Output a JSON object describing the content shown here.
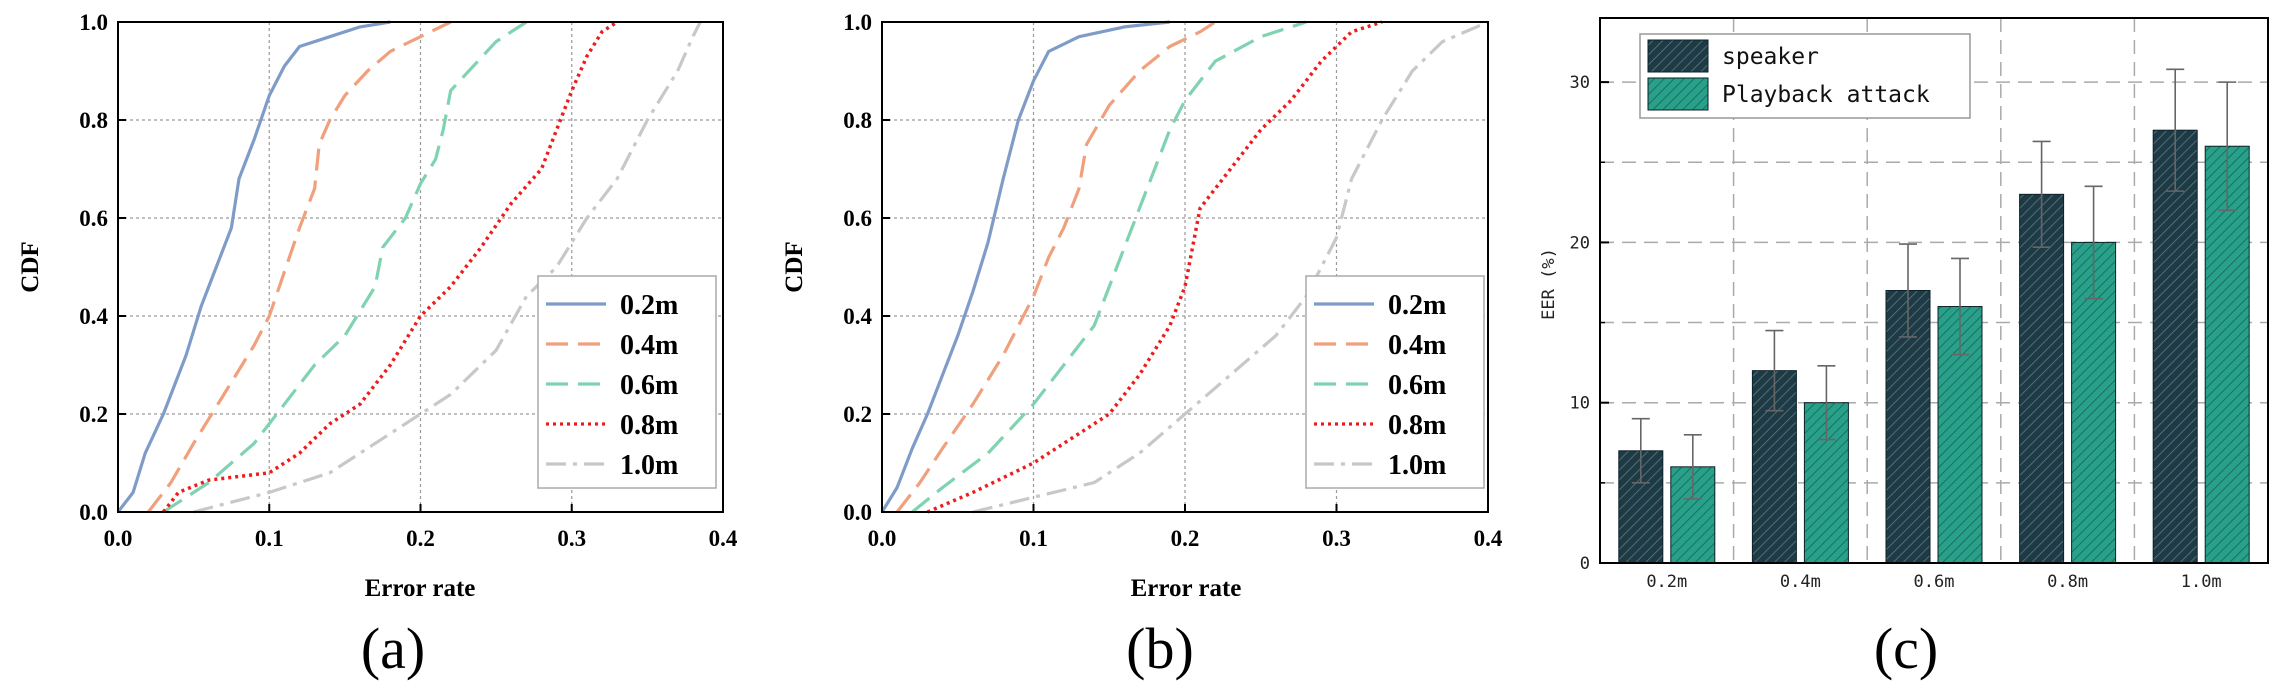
{
  "chart_data": [
    {
      "type": "line",
      "id": "a",
      "panel_label": "(a)",
      "xlabel": "Error rate",
      "ylabel": "CDF",
      "xlim": [
        0,
        0.4
      ],
      "ylim": [
        0,
        1.0
      ],
      "xticks": [
        "0.0",
        "0.1",
        "0.2",
        "0.3",
        "0.4"
      ],
      "yticks": [
        "0.0",
        "0.2",
        "0.4",
        "0.6",
        "0.8",
        "1.0"
      ],
      "grid": true,
      "legend_position": "lower-right",
      "series": [
        {
          "name": "0.2m",
          "style": "solid",
          "color": "#7f9cc8",
          "points": [
            [
              0,
              0
            ],
            [
              0.01,
              0.04
            ],
            [
              0.018,
              0.12
            ],
            [
              0.03,
              0.2
            ],
            [
              0.045,
              0.32
            ],
            [
              0.055,
              0.42
            ],
            [
              0.065,
              0.5
            ],
            [
              0.075,
              0.58
            ],
            [
              0.08,
              0.68
            ],
            [
              0.09,
              0.76
            ],
            [
              0.1,
              0.85
            ],
            [
              0.11,
              0.91
            ],
            [
              0.12,
              0.95
            ],
            [
              0.14,
              0.97
            ],
            [
              0.16,
              0.99
            ],
            [
              0.18,
              1.0
            ]
          ]
        },
        {
          "name": "0.4m",
          "style": "dashed",
          "color": "#f0a07c",
          "points": [
            [
              0.02,
              0
            ],
            [
              0.035,
              0.06
            ],
            [
              0.05,
              0.14
            ],
            [
              0.07,
              0.24
            ],
            [
              0.09,
              0.34
            ],
            [
              0.1,
              0.4
            ],
            [
              0.11,
              0.49
            ],
            [
              0.12,
              0.58
            ],
            [
              0.13,
              0.66
            ],
            [
              0.133,
              0.75
            ],
            [
              0.14,
              0.8
            ],
            [
              0.15,
              0.85
            ],
            [
              0.165,
              0.9
            ],
            [
              0.18,
              0.94
            ],
            [
              0.2,
              0.97
            ],
            [
              0.22,
              1.0
            ]
          ]
        },
        {
          "name": "0.6m",
          "style": "dashed",
          "color": "#7fd3b0",
          "points": [
            [
              0.03,
              0
            ],
            [
              0.06,
              0.06
            ],
            [
              0.09,
              0.14
            ],
            [
              0.11,
              0.22
            ],
            [
              0.13,
              0.3
            ],
            [
              0.15,
              0.36
            ],
            [
              0.17,
              0.46
            ],
            [
              0.175,
              0.54
            ],
            [
              0.19,
              0.6
            ],
            [
              0.2,
              0.67
            ],
            [
              0.21,
              0.72
            ],
            [
              0.215,
              0.78
            ],
            [
              0.22,
              0.86
            ],
            [
              0.235,
              0.91
            ],
            [
              0.25,
              0.96
            ],
            [
              0.27,
              1.0
            ]
          ]
        },
        {
          "name": "0.8m",
          "style": "dotted",
          "color": "#ee1c1c",
          "points": [
            [
              0.03,
              0
            ],
            [
              0.04,
              0.04
            ],
            [
              0.06,
              0.065
            ],
            [
              0.1,
              0.08
            ],
            [
              0.12,
              0.12
            ],
            [
              0.14,
              0.18
            ],
            [
              0.16,
              0.22
            ],
            [
              0.18,
              0.3
            ],
            [
              0.2,
              0.4
            ],
            [
              0.22,
              0.46
            ],
            [
              0.24,
              0.54
            ],
            [
              0.26,
              0.63
            ],
            [
              0.28,
              0.7
            ],
            [
              0.29,
              0.78
            ],
            [
              0.3,
              0.86
            ],
            [
              0.31,
              0.93
            ],
            [
              0.32,
              0.98
            ],
            [
              0.33,
              1.0
            ]
          ]
        },
        {
          "name": "1.0m",
          "style": "dashdot",
          "color": "#c8c8c8",
          "points": [
            [
              0.05,
              0
            ],
            [
              0.1,
              0.04
            ],
            [
              0.14,
              0.08
            ],
            [
              0.18,
              0.16
            ],
            [
              0.22,
              0.24
            ],
            [
              0.25,
              0.33
            ],
            [
              0.27,
              0.44
            ],
            [
              0.29,
              0.5
            ],
            [
              0.31,
              0.6
            ],
            [
              0.33,
              0.68
            ],
            [
              0.35,
              0.8
            ],
            [
              0.37,
              0.9
            ],
            [
              0.38,
              0.97
            ],
            [
              0.385,
              1.0
            ]
          ]
        }
      ]
    },
    {
      "type": "line",
      "id": "b",
      "panel_label": "(b)",
      "xlabel": "Error rate",
      "ylabel": "CDF",
      "xlim": [
        0,
        0.4
      ],
      "ylim": [
        0,
        1.0
      ],
      "xticks": [
        "0.0",
        "0.1",
        "0.2",
        "0.3",
        "0.4"
      ],
      "yticks": [
        "0.0",
        "0.2",
        "0.4",
        "0.6",
        "0.8",
        "1.0"
      ],
      "grid": true,
      "legend_position": "lower-right",
      "series": [
        {
          "name": "0.2m",
          "style": "solid",
          "color": "#7f9cc8",
          "points": [
            [
              0,
              0
            ],
            [
              0.01,
              0.05
            ],
            [
              0.02,
              0.13
            ],
            [
              0.03,
              0.2
            ],
            [
              0.04,
              0.28
            ],
            [
              0.05,
              0.36
            ],
            [
              0.06,
              0.45
            ],
            [
              0.07,
              0.55
            ],
            [
              0.08,
              0.68
            ],
            [
              0.09,
              0.8
            ],
            [
              0.1,
              0.88
            ],
            [
              0.11,
              0.94
            ],
            [
              0.13,
              0.97
            ],
            [
              0.16,
              0.99
            ],
            [
              0.19,
              1.0
            ]
          ]
        },
        {
          "name": "0.4m",
          "style": "dashed",
          "color": "#f0a07c",
          "points": [
            [
              0.01,
              0
            ],
            [
              0.025,
              0.06
            ],
            [
              0.04,
              0.13
            ],
            [
              0.06,
              0.22
            ],
            [
              0.08,
              0.32
            ],
            [
              0.1,
              0.44
            ],
            [
              0.11,
              0.52
            ],
            [
              0.12,
              0.58
            ],
            [
              0.13,
              0.66
            ],
            [
              0.135,
              0.75
            ],
            [
              0.15,
              0.83
            ],
            [
              0.17,
              0.9
            ],
            [
              0.19,
              0.95
            ],
            [
              0.21,
              0.98
            ],
            [
              0.22,
              1.0
            ]
          ]
        },
        {
          "name": "0.6m",
          "style": "dashed",
          "color": "#7fd3b0",
          "points": [
            [
              0.02,
              0
            ],
            [
              0.04,
              0.05
            ],
            [
              0.07,
              0.12
            ],
            [
              0.1,
              0.22
            ],
            [
              0.12,
              0.3
            ],
            [
              0.14,
              0.38
            ],
            [
              0.15,
              0.46
            ],
            [
              0.16,
              0.54
            ],
            [
              0.17,
              0.62
            ],
            [
              0.18,
              0.7
            ],
            [
              0.19,
              0.78
            ],
            [
              0.2,
              0.84
            ],
            [
              0.22,
              0.92
            ],
            [
              0.25,
              0.97
            ],
            [
              0.28,
              1.0
            ]
          ]
        },
        {
          "name": "0.8m",
          "style": "dotted",
          "color": "#ee1c1c",
          "points": [
            [
              0.03,
              0
            ],
            [
              0.06,
              0.04
            ],
            [
              0.1,
              0.1
            ],
            [
              0.13,
              0.16
            ],
            [
              0.15,
              0.2
            ],
            [
              0.17,
              0.28
            ],
            [
              0.19,
              0.38
            ],
            [
              0.2,
              0.46
            ],
            [
              0.21,
              0.62
            ],
            [
              0.23,
              0.7
            ],
            [
              0.25,
              0.78
            ],
            [
              0.27,
              0.84
            ],
            [
              0.29,
              0.92
            ],
            [
              0.31,
              0.98
            ],
            [
              0.33,
              1.0
            ]
          ]
        },
        {
          "name": "1.0m",
          "style": "dashdot",
          "color": "#c8c8c8",
          "points": [
            [
              0.06,
              0
            ],
            [
              0.1,
              0.03
            ],
            [
              0.14,
              0.06
            ],
            [
              0.17,
              0.12
            ],
            [
              0.2,
              0.2
            ],
            [
              0.23,
              0.28
            ],
            [
              0.26,
              0.36
            ],
            [
              0.28,
              0.44
            ],
            [
              0.3,
              0.56
            ],
            [
              0.31,
              0.68
            ],
            [
              0.33,
              0.8
            ],
            [
              0.35,
              0.9
            ],
            [
              0.37,
              0.96
            ],
            [
              0.4,
              1.0
            ]
          ]
        }
      ]
    },
    {
      "type": "bar",
      "id": "c",
      "panel_label": "(c)",
      "xlabel": "",
      "ylabel": "EER (%)",
      "categories": [
        "0.2m",
        "0.4m",
        "0.6m",
        "0.8m",
        "1.0m"
      ],
      "ylim": [
        0,
        34
      ],
      "yticks": [
        "0",
        "10",
        "20",
        "30"
      ],
      "grid": true,
      "legend_position": "top-left",
      "series": [
        {
          "name": "speaker",
          "color": "#1e3a45",
          "values": [
            7,
            12,
            17,
            23,
            27
          ],
          "errors": [
            2,
            2.5,
            2.9,
            3.3,
            3.8
          ]
        },
        {
          "name": "Playback attack",
          "color": "#28a08a",
          "values": [
            6,
            10,
            16,
            20,
            26
          ],
          "errors": [
            2,
            2.3,
            3.0,
            3.5,
            4.0
          ]
        }
      ]
    }
  ]
}
